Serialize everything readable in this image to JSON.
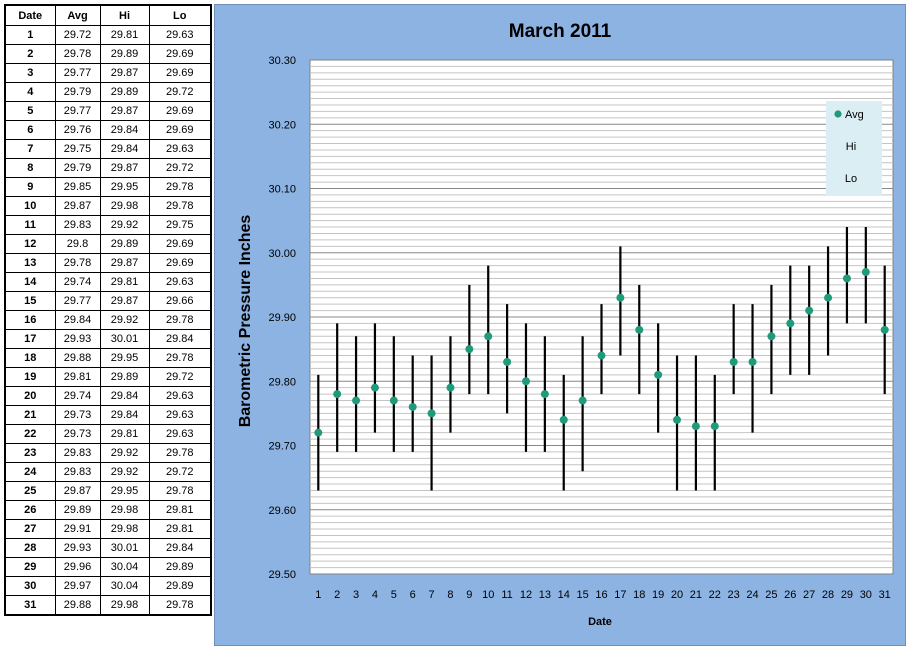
{
  "table": {
    "headers": [
      "Date",
      "Avg",
      "Hi",
      "Lo"
    ],
    "rows": [
      [
        "1",
        "29.72",
        "29.81",
        "29.63"
      ],
      [
        "2",
        "29.78",
        "29.89",
        "29.69"
      ],
      [
        "3",
        "29.77",
        "29.87",
        "29.69"
      ],
      [
        "4",
        "29.79",
        "29.89",
        "29.72"
      ],
      [
        "5",
        "29.77",
        "29.87",
        "29.69"
      ],
      [
        "6",
        "29.76",
        "29.84",
        "29.69"
      ],
      [
        "7",
        "29.75",
        "29.84",
        "29.63"
      ],
      [
        "8",
        "29.79",
        "29.87",
        "29.72"
      ],
      [
        "9",
        "29.85",
        "29.95",
        "29.78"
      ],
      [
        "10",
        "29.87",
        "29.98",
        "29.78"
      ],
      [
        "11",
        "29.83",
        "29.92",
        "29.75"
      ],
      [
        "12",
        "29.8",
        "29.89",
        "29.69"
      ],
      [
        "13",
        "29.78",
        "29.87",
        "29.69"
      ],
      [
        "14",
        "29.74",
        "29.81",
        "29.63"
      ],
      [
        "15",
        "29.77",
        "29.87",
        "29.66"
      ],
      [
        "16",
        "29.84",
        "29.92",
        "29.78"
      ],
      [
        "17",
        "29.93",
        "30.01",
        "29.84"
      ],
      [
        "18",
        "29.88",
        "29.95",
        "29.78"
      ],
      [
        "19",
        "29.81",
        "29.89",
        "29.72"
      ],
      [
        "20",
        "29.74",
        "29.84",
        "29.63"
      ],
      [
        "21",
        "29.73",
        "29.84",
        "29.63"
      ],
      [
        "22",
        "29.73",
        "29.81",
        "29.63"
      ],
      [
        "23",
        "29.83",
        "29.92",
        "29.78"
      ],
      [
        "24",
        "29.83",
        "29.92",
        "29.72"
      ],
      [
        "25",
        "29.87",
        "29.95",
        "29.78"
      ],
      [
        "26",
        "29.89",
        "29.98",
        "29.81"
      ],
      [
        "27",
        "29.91",
        "29.98",
        "29.81"
      ],
      [
        "28",
        "29.93",
        "30.01",
        "29.84"
      ],
      [
        "29",
        "29.96",
        "30.04",
        "29.89"
      ],
      [
        "30",
        "29.97",
        "30.04",
        "29.89"
      ],
      [
        "31",
        "29.88",
        "29.98",
        "29.78"
      ]
    ]
  },
  "chart_data": {
    "type": "scatter",
    "title": "March 2011",
    "xlabel": "Date",
    "ylabel": "Barometric Pressure Inches",
    "x": [
      1,
      2,
      3,
      4,
      5,
      6,
      7,
      8,
      9,
      10,
      11,
      12,
      13,
      14,
      15,
      16,
      17,
      18,
      19,
      20,
      21,
      22,
      23,
      24,
      25,
      26,
      27,
      28,
      29,
      30,
      31
    ],
    "ylim": [
      29.5,
      30.3
    ],
    "yticks": [
      "29.50",
      "29.60",
      "29.70",
      "29.80",
      "29.90",
      "30.00",
      "30.10",
      "30.20",
      "30.30"
    ],
    "grid": true,
    "legend_position": "top-right",
    "series": [
      {
        "name": "Avg",
        "values": [
          29.72,
          29.78,
          29.77,
          29.79,
          29.77,
          29.76,
          29.75,
          29.79,
          29.85,
          29.87,
          29.83,
          29.8,
          29.78,
          29.74,
          29.77,
          29.84,
          29.93,
          29.88,
          29.81,
          29.74,
          29.73,
          29.73,
          29.83,
          29.83,
          29.87,
          29.89,
          29.91,
          29.93,
          29.96,
          29.97,
          29.88
        ]
      },
      {
        "name": "Hi",
        "values": [
          29.81,
          29.89,
          29.87,
          29.89,
          29.87,
          29.84,
          29.84,
          29.87,
          29.95,
          29.98,
          29.92,
          29.89,
          29.87,
          29.81,
          29.87,
          29.92,
          30.01,
          29.95,
          29.89,
          29.84,
          29.84,
          29.81,
          29.92,
          29.92,
          29.95,
          29.98,
          29.98,
          30.01,
          30.04,
          30.04,
          29.98
        ]
      },
      {
        "name": "Lo",
        "values": [
          29.63,
          29.69,
          29.69,
          29.72,
          29.69,
          29.69,
          29.63,
          29.72,
          29.78,
          29.78,
          29.75,
          29.69,
          29.69,
          29.63,
          29.66,
          29.78,
          29.84,
          29.78,
          29.72,
          29.63,
          29.63,
          29.63,
          29.78,
          29.72,
          29.78,
          29.81,
          29.81,
          29.84,
          29.89,
          29.89,
          29.78
        ]
      }
    ],
    "colors": {
      "avg_marker": "#1f9a7a",
      "range_line": "#000000",
      "panel": "#8db3e2",
      "plot_area": "#ffffff",
      "gridline": "#b0b0b0",
      "legend_box": "#dbeef4"
    }
  }
}
